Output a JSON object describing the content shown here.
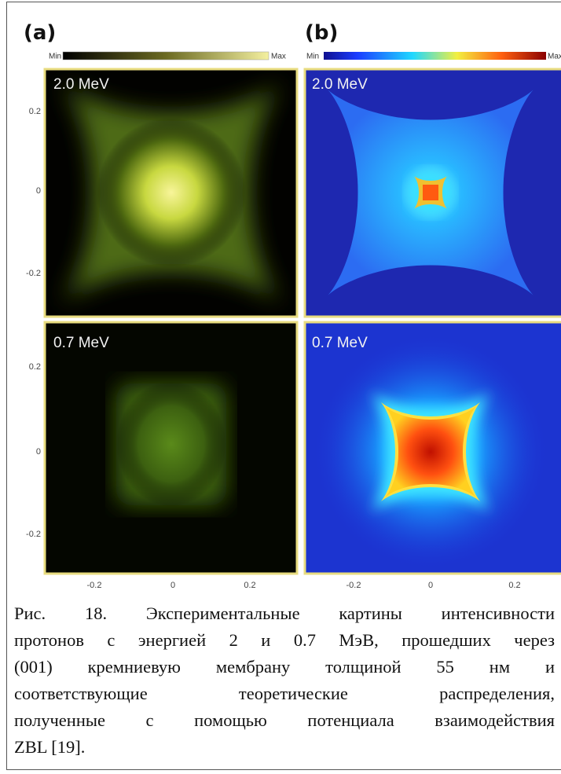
{
  "panels": {
    "a": {
      "label": "(a)",
      "colorbar": {
        "min": "Min",
        "max": "Max"
      },
      "top": "2.0 MeV",
      "bottom": "0.7 MeV"
    },
    "b": {
      "label": "(b)",
      "colorbar": {
        "min": "Min",
        "max": "Max"
      },
      "top": "2.0 MeV",
      "bottom": "0.7 MeV"
    }
  },
  "axes": {
    "y_ticks_top": [
      "0.2",
      "0",
      "-0.2"
    ],
    "y_ticks_bottom": [
      "0.2",
      "0",
      "-0.2"
    ],
    "x_ticks_left": [
      "-0.2",
      "0",
      "0.2"
    ],
    "x_ticks_right": [
      "-0.2",
      "0",
      "0.2"
    ]
  },
  "caption": {
    "lines": [
      "Рис. 18. Экспериментальные картины интенсивности",
      "протонов с энергией 2 и 0.7 МэВ, прошедших через",
      "(001) кремниевую мембрану толщиной 55 нм и",
      "соответствующие теоретические распределения,",
      "полученные с помощью потенциала взаимодействия",
      "ZBL [19]."
    ]
  }
}
